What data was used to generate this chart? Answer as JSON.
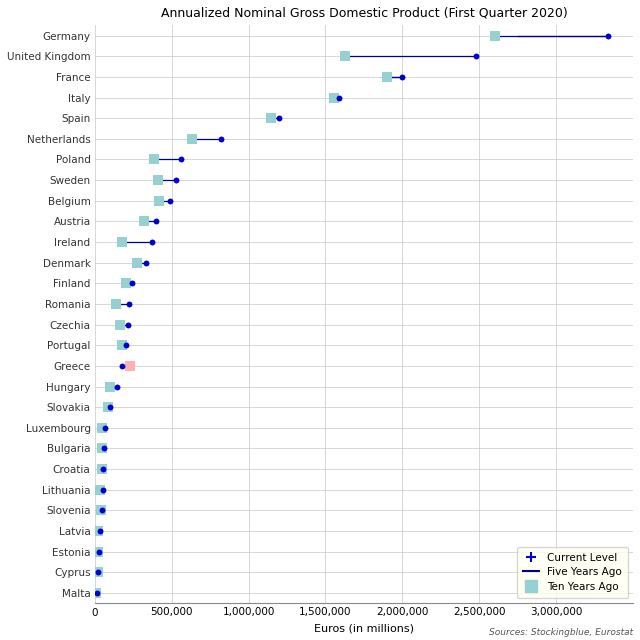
{
  "title": "Annualized Nominal Gross Domestic Product (First Quarter 2020)",
  "xlabel": "Euros (in millions)",
  "source": "Sources: Stockingblue, Eurostat",
  "countries": [
    "Germany",
    "United Kingdom",
    "France",
    "Italy",
    "Spain",
    "Netherlands",
    "Poland",
    "Sweden",
    "Belgium",
    "Austria",
    "Ireland",
    "Denmark",
    "Finland",
    "Romania",
    "Czechia",
    "Portugal",
    "Greece",
    "Hungary",
    "Slovakia",
    "Luxembourg",
    "Bulgaria",
    "Croatia",
    "Lithuania",
    "Slovenia",
    "Latvia",
    "Estonia",
    "Cyprus",
    "Malta"
  ],
  "current": [
    3340000,
    2480000,
    2000000,
    1590000,
    1200000,
    820000,
    560000,
    530000,
    490000,
    400000,
    370000,
    335000,
    240000,
    225000,
    215000,
    205000,
    175000,
    148000,
    97000,
    67000,
    62000,
    56000,
    53000,
    47000,
    33000,
    28000,
    22000,
    13500
  ],
  "five_years_ago": [
    2750000,
    null,
    1870000,
    null,
    null,
    null,
    null,
    null,
    null,
    null,
    null,
    null,
    null,
    null,
    null,
    null,
    null,
    null,
    null,
    null,
    null,
    null,
    null,
    null,
    null,
    null,
    null,
    null
  ],
  "ten_years_ago": [
    2600000,
    1630000,
    1900000,
    1555000,
    1145000,
    630000,
    385000,
    410000,
    415000,
    320000,
    175000,
    275000,
    205000,
    140000,
    165000,
    175000,
    230000,
    102000,
    88000,
    47000,
    47000,
    50000,
    36000,
    38000,
    24000,
    18000,
    18000,
    7000
  ],
  "dot_color": "#0000CD",
  "line_color": "#00008B",
  "ten_years_color": "#96D0D0",
  "greece_ten_years_color": "#FFB0B0",
  "background_color": "#FFFFFF",
  "grid_color": "#C8C8C8",
  "xlim_min": 0,
  "xlim_max": 3500000,
  "xticks": [
    0,
    500000,
    1000000,
    1500000,
    2000000,
    2500000,
    3000000
  ],
  "xtick_labels": [
    "0",
    "500,000",
    "1,000,000",
    "1,500,000",
    "2,000,000",
    "2,500,000",
    "3,000,000"
  ]
}
